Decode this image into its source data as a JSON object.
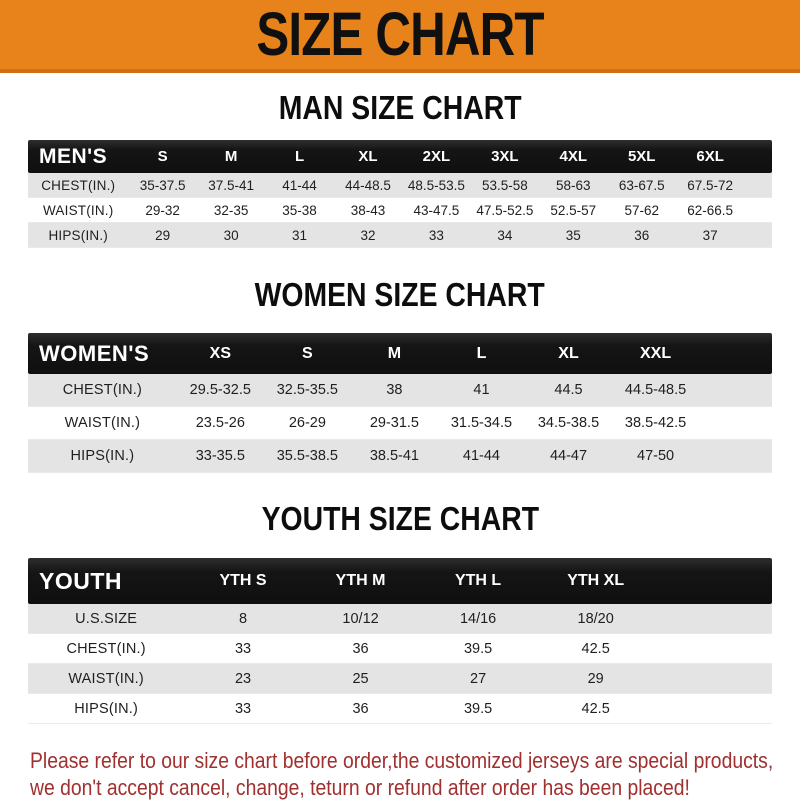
{
  "banner": {
    "title": "SIZE CHART"
  },
  "sections": [
    {
      "id": "men",
      "title": "MAN SIZE CHART",
      "group_label": "MEN'S",
      "columns": [
        "S",
        "M",
        "L",
        "XL",
        "2XL",
        "3XL",
        "4XL",
        "5XL",
        "6XL"
      ],
      "rows": [
        {
          "label": "CHEST(IN.)",
          "values": [
            "35-37.5",
            "37.5-41",
            "41-44",
            "44-48.5",
            "48.5-53.5",
            "53.5-58",
            "58-63",
            "63-67.5",
            "67.5-72"
          ]
        },
        {
          "label": "WAIST(IN.)",
          "values": [
            "29-32",
            "32-35",
            "35-38",
            "38-43",
            "43-47.5",
            "47.5-52.5",
            "52.5-57",
            "57-62",
            "62-66.5"
          ]
        },
        {
          "label": "HIPS(IN.)",
          "values": [
            "29",
            "30",
            "31",
            "32",
            "33",
            "34",
            "35",
            "36",
            "37"
          ]
        }
      ]
    },
    {
      "id": "women",
      "title": "WOMEN SIZE CHART",
      "group_label": "WOMEN'S",
      "columns": [
        "XS",
        "S",
        "M",
        "L",
        "XL",
        "XXL"
      ],
      "rows": [
        {
          "label": "CHEST(IN.)",
          "values": [
            "29.5-32.5",
            "32.5-35.5",
            "38",
            "41",
            "44.5",
            "44.5-48.5"
          ]
        },
        {
          "label": "WAIST(IN.)",
          "values": [
            "23.5-26",
            "26-29",
            "29-31.5",
            "31.5-34.5",
            "34.5-38.5",
            "38.5-42.5"
          ]
        },
        {
          "label": "HIPS(IN.)",
          "values": [
            "33-35.5",
            "35.5-38.5",
            "38.5-41",
            "41-44",
            "44-47",
            "47-50"
          ]
        }
      ]
    },
    {
      "id": "youth",
      "title": "YOUTH SIZE CHART",
      "group_label": "YOUTH",
      "columns": [
        "YTH S",
        "YTH M",
        "YTH L",
        "YTH XL"
      ],
      "rows": [
        {
          "label": "U.S.SIZE",
          "values": [
            "8",
            "10/12",
            "14/16",
            "18/20"
          ]
        },
        {
          "label": "CHEST(IN.)",
          "values": [
            "33",
            "36",
            "39.5",
            "42.5"
          ]
        },
        {
          "label": "WAIST(IN.)",
          "values": [
            "23",
            "25",
            "27",
            "29"
          ]
        },
        {
          "label": "HIPS(IN.)",
          "values": [
            "33",
            "36",
            "39.5",
            "42.5"
          ]
        }
      ]
    }
  ],
  "disclaimer": {
    "line1": "Please refer to our size chart before order,the customized jerseys are special products,",
    "line2": "we don't accept cancel, change, teturn or refund after order has been placed!"
  },
  "colors": {
    "banner_orange": "#E8821B",
    "banner_edge": "#D06F10",
    "bar_black": "#151515",
    "row_gray": "#E4E4E4",
    "text_dark": "#1F1F1F",
    "disclaimer_red": "#A13030"
  }
}
